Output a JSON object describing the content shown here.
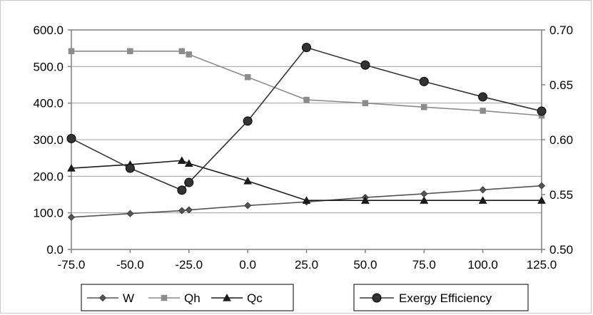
{
  "chart_data": {
    "type": "line",
    "title": "",
    "xlabel": "",
    "ylabel": "",
    "y2label": "",
    "xlim": [
      -75,
      125
    ],
    "ylim": [
      0,
      600
    ],
    "y2lim": [
      0.5,
      0.7
    ],
    "grid": "horizontal",
    "legend_position": "bottom",
    "x_ticks": [
      "-75.0",
      "-50.0",
      "-25.0",
      "0.0",
      "25.0",
      "50.0",
      "75.0",
      "100.0",
      "125.0"
    ],
    "y_ticks": [
      "0.0",
      "100.0",
      "200.0",
      "300.0",
      "400.0",
      "500.0",
      "600.0"
    ],
    "y2_ticks": [
      "0.50",
      "0.55",
      "0.60",
      "0.65",
      "0.70"
    ],
    "series": [
      {
        "name": "W",
        "axis": "left",
        "marker": "diamond",
        "color": "#555555",
        "x": [
          -75,
          -50,
          -28,
          -25,
          0,
          25,
          50,
          75,
          100,
          125
        ],
        "y": [
          88,
          98,
          106,
          108,
          120,
          130,
          142,
          152,
          163,
          174
        ]
      },
      {
        "name": "Qh",
        "axis": "left",
        "marker": "square",
        "color": "#8c8c8c",
        "x": [
          -75,
          -50,
          -28,
          -25,
          0,
          25,
          50,
          75,
          100,
          125
        ],
        "y": [
          542,
          542,
          542,
          533,
          471,
          409,
          400,
          389,
          379,
          366
        ]
      },
      {
        "name": "Qc",
        "axis": "left",
        "marker": "triangle",
        "color": "#1a1a1a",
        "x": [
          -75,
          -50,
          -28,
          -25,
          0,
          25,
          50,
          75,
          100,
          125
        ],
        "y": [
          222,
          232,
          243,
          235,
          187,
          134,
          134,
          134,
          134,
          134
        ]
      },
      {
        "name": "Exergy Efficiency",
        "axis": "right",
        "marker": "circle",
        "color": "#333333",
        "x": [
          -75,
          -50,
          -28,
          -25,
          0,
          25,
          50,
          75,
          100,
          125
        ],
        "y": [
          0.601,
          0.574,
          0.554,
          0.561,
          0.617,
          0.684,
          0.668,
          0.653,
          0.639,
          0.626
        ]
      }
    ]
  }
}
